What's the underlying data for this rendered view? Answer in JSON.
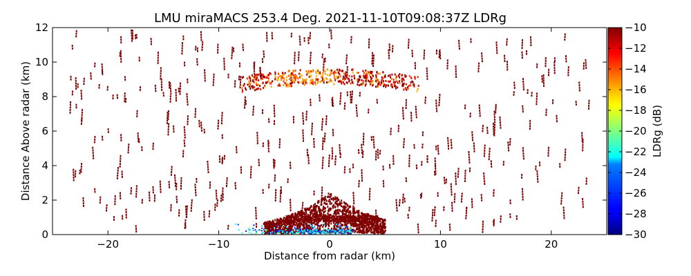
{
  "chart_data": {
    "type": "heatmap",
    "title": "LMU miraMACS 253.4 Deg. 2021-11-10T09:08:37Z  LDRg",
    "xlabel": "Distance from radar (km)",
    "ylabel": "Distance Above radar  (km)",
    "xlim": [
      -25,
      25
    ],
    "ylim": [
      0,
      12
    ],
    "xticks": [
      -20,
      -10,
      0,
      10,
      20
    ],
    "xtick_labels": [
      "−20",
      "−10",
      "0",
      "10",
      "20"
    ],
    "yticks": [
      0,
      2,
      4,
      6,
      8,
      10,
      12
    ],
    "ytick_labels": [
      "0",
      "2",
      "4",
      "6",
      "8",
      "10",
      "12"
    ],
    "colorbar": {
      "label": "LDRg (dB)",
      "range": [
        -30,
        -10
      ],
      "ticks": [
        -10,
        -12,
        -14,
        -16,
        -18,
        -20,
        -22,
        -24,
        -26,
        -28,
        -30
      ],
      "tick_labels": [
        "−10",
        "−12",
        "−14",
        "−16",
        "−18",
        "−20",
        "−22",
        "−24",
        "−26",
        "−28",
        "−30"
      ],
      "colormap": "jet"
    },
    "features": [
      {
        "name": "upper-cloud-layer",
        "x_range": [
          -8,
          8
        ],
        "z_range": [
          8.2,
          9.8
        ],
        "ldr_typical": -14
      },
      {
        "name": "near-surface-clutter",
        "x_range": [
          -6,
          5
        ],
        "z_range": [
          0,
          2.5
        ],
        "ldr_typical": -10
      },
      {
        "name": "low-ldr-surface-echoes",
        "x_range": [
          -9,
          2
        ],
        "z_range": [
          0,
          0.6
        ],
        "ldr_typical": -23
      }
    ]
  },
  "colors": {
    "background": "#ffffff",
    "axes": "#000000",
    "dominant_echo": "#7f0000"
  }
}
